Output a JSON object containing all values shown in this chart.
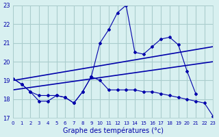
{
  "xlabel": "Graphe des températures (°c)",
  "bg_color": "#d8f0f0",
  "line_color": "#0000aa",
  "grid_color": "#aacccc",
  "xlim": [
    0,
    23
  ],
  "ylim": [
    17,
    23
  ],
  "xticks": [
    0,
    1,
    2,
    3,
    4,
    5,
    6,
    7,
    8,
    9,
    10,
    11,
    12,
    13,
    14,
    15,
    16,
    17,
    18,
    19,
    20,
    21,
    22,
    23
  ],
  "yticks": [
    17,
    18,
    19,
    20,
    21,
    22,
    23
  ],
  "series": [
    [
      19.1,
      18.8,
      18.4,
      17.9,
      17.9,
      18.2,
      18.1,
      17.8,
      18.4,
      19.2,
      19.0,
      18.5,
      18.5,
      18.5,
      18.5,
      18.4,
      18.4,
      18.3,
      18.2,
      18.1,
      18.0,
      17.9,
      17.8,
      17.1
    ],
    [
      19.1,
      18.8,
      18.4,
      18.2,
      18.2,
      18.2,
      18.1,
      17.8,
      18.4,
      19.2,
      21.0,
      21.7,
      22.6,
      23.0,
      20.5,
      20.4,
      20.8,
      21.2,
      21.3,
      20.9,
      19.5,
      18.3,
      null,
      null
    ],
    [
      19.1,
      null,
      null,
      18.4,
      null,
      null,
      null,
      null,
      null,
      null,
      20.0,
      null,
      null,
      null,
      20.5,
      20.4,
      21.0,
      null,
      21.3,
      20.9,
      null,
      null,
      null,
      null
    ],
    [
      19.1,
      null,
      null,
      null,
      null,
      null,
      null,
      null,
      null,
      null,
      null,
      null,
      null,
      null,
      null,
      20.4,
      null,
      null,
      21.3,
      null,
      null,
      null,
      null,
      null
    ]
  ],
  "trend_lines": [
    {
      "x0": 0,
      "y0": 19.0,
      "x1": 23,
      "y1": 20.8
    },
    {
      "x0": 0,
      "y0": 18.5,
      "x1": 23,
      "y1": 20.0
    }
  ]
}
